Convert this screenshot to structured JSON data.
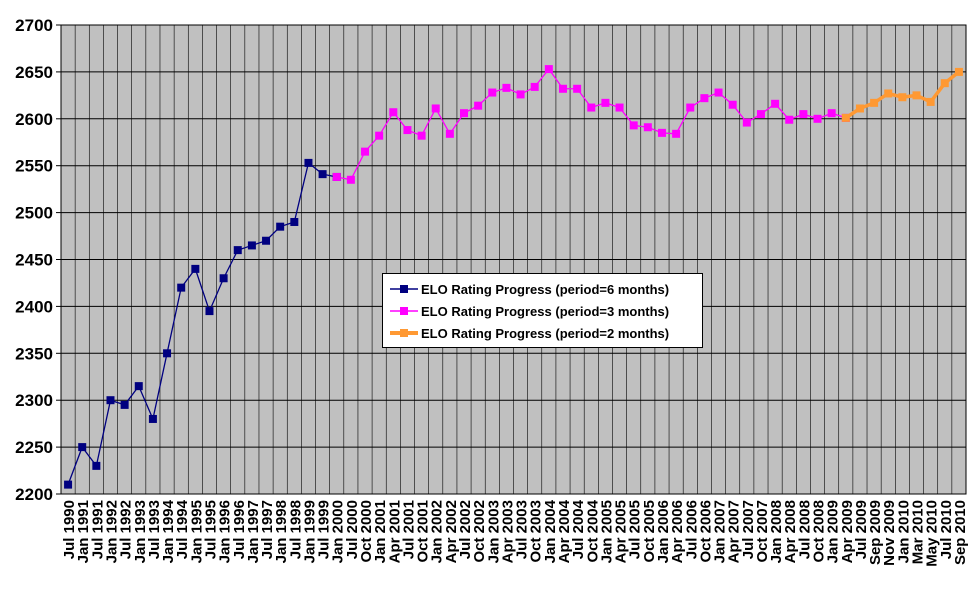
{
  "chart_data": {
    "type": "line",
    "ylim": [
      2200,
      2700
    ],
    "y_ticks": [
      2200,
      2250,
      2300,
      2350,
      2400,
      2450,
      2500,
      2550,
      2600,
      2650,
      2700
    ],
    "grid": true,
    "legend_position": "center",
    "x": [
      "Jul 1990",
      "Jan 1991",
      "Jul 1991",
      "Jan 1992",
      "Jul 1992",
      "Jan 1993",
      "Jul 1993",
      "Jan 1994",
      "Jul 1994",
      "Jan 1995",
      "Jul 1995",
      "Jan 1996",
      "Jul 1996",
      "Jan 1997",
      "Jul 1997",
      "Jan 1998",
      "Jul 1998",
      "Jan 1999",
      "Jul 1999",
      "Jan 2000",
      "Jul 2000",
      "Oct 2000",
      "Jan 2001",
      "Apr 2001",
      "Jul 2001",
      "Oct 2001",
      "Jan 2002",
      "Apr 2002",
      "Jul 2002",
      "Oct 2002",
      "Jan 2003",
      "Apr 2003",
      "Jul 2003",
      "Oct 2003",
      "Jan 2004",
      "Apr 2004",
      "Jul 2004",
      "Oct 2004",
      "Jan 2005",
      "Apr 2005",
      "Jul 2005",
      "Oct 2005",
      "Jan 2006",
      "Apr 2006",
      "Jul 2006",
      "Oct 2006",
      "Jan 2007",
      "Apr 2007",
      "Jul 2007",
      "Oct 2007",
      "Jan 2008",
      "Apr 2008",
      "Jul 2008",
      "Oct 2008",
      "Jan 2009",
      "Apr 2009",
      "Jul 2009",
      "Sep 2009",
      "Nov 2009",
      "Jan 2010",
      "Mar 2010",
      "May 2010",
      "Jul 2010",
      "Sep 2010"
    ],
    "series": [
      {
        "name": "ELO Rating Progress (period=6 months)",
        "color": "#000080",
        "points": [
          [
            "Jul 1990",
            2210
          ],
          [
            "Jan 1991",
            2250
          ],
          [
            "Jul 1991",
            2230
          ],
          [
            "Jan 1992",
            2300
          ],
          [
            "Jul 1992",
            2295
          ],
          [
            "Jan 1993",
            2315
          ],
          [
            "Jul 1993",
            2280
          ],
          [
            "Jan 1994",
            2350
          ],
          [
            "Jul 1994",
            2420
          ],
          [
            "Jan 1995",
            2440
          ],
          [
            "Jul 1995",
            2395
          ],
          [
            "Jan 1996",
            2430
          ],
          [
            "Jul 1996",
            2460
          ],
          [
            "Jan 1997",
            2465
          ],
          [
            "Jul 1997",
            2470
          ],
          [
            "Jan 1998",
            2485
          ],
          [
            "Jul 1998",
            2490
          ],
          [
            "Jan 1999",
            2553
          ],
          [
            "Jul 1999",
            2541
          ],
          [
            "Jan 2000",
            2538
          ]
        ]
      },
      {
        "name": "ELO Rating Progress (period=3 months)",
        "color": "#ff00ff",
        "points": [
          [
            "Jan 2000",
            2538
          ],
          [
            "Jul 2000",
            2535
          ],
          [
            "Oct 2000",
            2565
          ],
          [
            "Jan 2001",
            2582
          ],
          [
            "Apr 2001",
            2607
          ],
          [
            "Jul 2001",
            2588
          ],
          [
            "Oct 2001",
            2582
          ],
          [
            "Jan 2002",
            2611
          ],
          [
            "Apr 2002",
            2584
          ],
          [
            "Jul 2002",
            2606
          ],
          [
            "Oct 2002",
            2614
          ],
          [
            "Jan 2003",
            2628
          ],
          [
            "Apr 2003",
            2633
          ],
          [
            "Jul 2003",
            2626
          ],
          [
            "Oct 2003",
            2634
          ],
          [
            "Jan 2004",
            2653
          ],
          [
            "Apr 2004",
            2632
          ],
          [
            "Jul 2004",
            2632
          ],
          [
            "Oct 2004",
            2612
          ],
          [
            "Jan 2005",
            2617
          ],
          [
            "Apr 2005",
            2612
          ],
          [
            "Jul 2005",
            2593
          ],
          [
            "Oct 2005",
            2591
          ],
          [
            "Jan 2006",
            2585
          ],
          [
            "Apr 2006",
            2584
          ],
          [
            "Jul 2006",
            2612
          ],
          [
            "Oct 2006",
            2622
          ],
          [
            "Jan 2007",
            2628
          ],
          [
            "Apr 2007",
            2615
          ],
          [
            "Jul 2007",
            2596
          ],
          [
            "Oct 2007",
            2605
          ],
          [
            "Jan 2008",
            2616
          ],
          [
            "Apr 2008",
            2599
          ],
          [
            "Jul 2008",
            2605
          ],
          [
            "Oct 2008",
            2600
          ],
          [
            "Jan 2009",
            2606
          ],
          [
            "Apr 2009",
            2601
          ]
        ]
      },
      {
        "name": "ELO Rating Progress (period=2 months)",
        "color": "#ff9933",
        "points": [
          [
            "Apr 2009",
            2601
          ],
          [
            "Jul 2009",
            2611
          ],
          [
            "Sep 2009",
            2617
          ],
          [
            "Nov 2009",
            2627
          ],
          [
            "Jan 2010",
            2623
          ],
          [
            "Mar 2010",
            2625
          ],
          [
            "May 2010",
            2618
          ],
          [
            "Jul 2010",
            2638
          ],
          [
            "Sep 2010",
            2650
          ]
        ]
      }
    ],
    "colors": {
      "plot_background": "#c0c0c0",
      "grid": "#000000"
    }
  }
}
